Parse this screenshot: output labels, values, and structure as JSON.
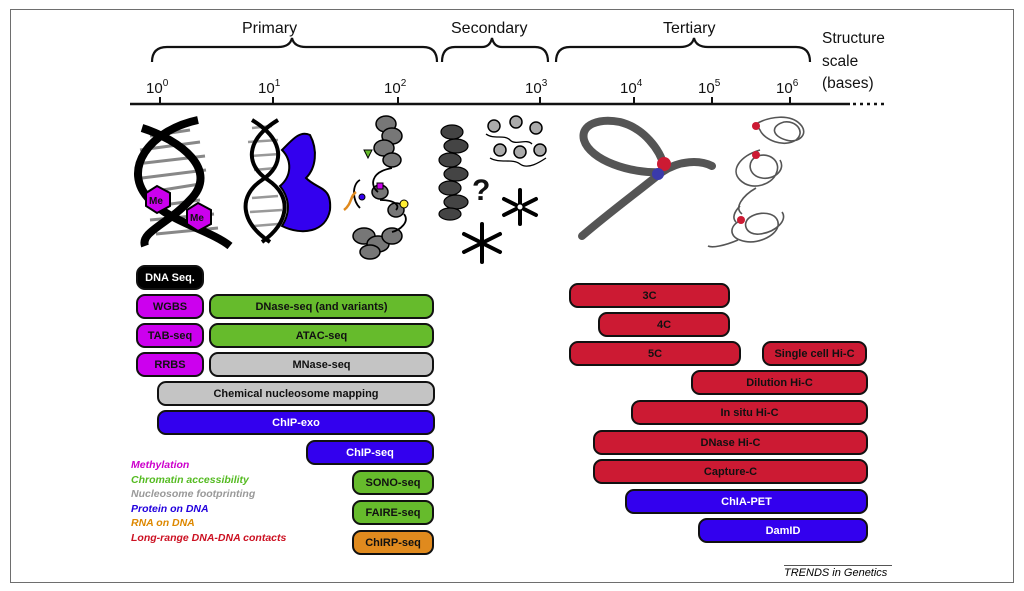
{
  "structure_levels": [
    "Primary",
    "Secondary",
    "Tertiary"
  ],
  "scale_title": [
    "Structure",
    "scale",
    "(bases)"
  ],
  "axis_ticks": [
    {
      "base": "10",
      "exp": "0"
    },
    {
      "base": "10",
      "exp": "1"
    },
    {
      "base": "10",
      "exp": "2"
    },
    {
      "base": "10",
      "exp": "3"
    },
    {
      "base": "10",
      "exp": "4"
    },
    {
      "base": "10",
      "exp": "5"
    },
    {
      "base": "10",
      "exp": "6"
    }
  ],
  "illustration_labels": {
    "methyl": "Me",
    "unknown": "?"
  },
  "categories": {
    "methylation": {
      "label": "Methylation",
      "color": "#cc00cc"
    },
    "chromatin": {
      "label": "Chromatin accessibility",
      "color": "#55bb22"
    },
    "nucleosome": {
      "label": "Nucleosome footprinting",
      "color": "#999999"
    },
    "protein": {
      "label": "Protein on DNA",
      "color": "#2200dd"
    },
    "rna": {
      "label": "RNA on DNA",
      "color": "#dd8800"
    },
    "contacts": {
      "label": "Long-range DNA-DNA contacts",
      "color": "#cc1122"
    }
  },
  "pill_colors": {
    "black": "#000000",
    "methylation": "#cc00ee",
    "chromatin": "#66bb2c",
    "nucleosome": "#c4c4c4",
    "protein": "#3300ee",
    "rna": "#e08a1e",
    "contacts": "#cc1a33"
  },
  "methods_left": [
    {
      "label": "DNA Seq.",
      "category": "black"
    },
    {
      "label": "WGBS",
      "category": "methylation"
    },
    {
      "label": "DNase-seq (and variants)",
      "category": "chromatin"
    },
    {
      "label": "TAB-seq",
      "category": "methylation"
    },
    {
      "label": "ATAC-seq",
      "category": "chromatin"
    },
    {
      "label": "RRBS",
      "category": "methylation"
    },
    {
      "label": "MNase-seq",
      "category": "nucleosome"
    },
    {
      "label": "Chemical nucleosome mapping",
      "category": "nucleosome"
    },
    {
      "label": "ChIP-exo",
      "category": "protein"
    },
    {
      "label": "ChIP-seq",
      "category": "protein"
    },
    {
      "label": "SONO-seq",
      "category": "chromatin"
    },
    {
      "label": "FAIRE-seq",
      "category": "chromatin"
    },
    {
      "label": "ChIRP-seq",
      "category": "rna"
    }
  ],
  "methods_right": [
    {
      "label": "3C",
      "category": "contacts"
    },
    {
      "label": "4C",
      "category": "contacts"
    },
    {
      "label": "5C",
      "category": "contacts"
    },
    {
      "label": "Single cell Hi-C",
      "category": "contacts"
    },
    {
      "label": "Dilution Hi-C",
      "category": "contacts"
    },
    {
      "label": "In situ Hi-C",
      "category": "contacts"
    },
    {
      "label": "DNase Hi-C",
      "category": "contacts"
    },
    {
      "label": "Capture-C",
      "category": "contacts"
    },
    {
      "label": "ChIA-PET",
      "category": "protein"
    },
    {
      "label": "DamID",
      "category": "protein"
    }
  ],
  "credit": "TRENDS in Genetics"
}
